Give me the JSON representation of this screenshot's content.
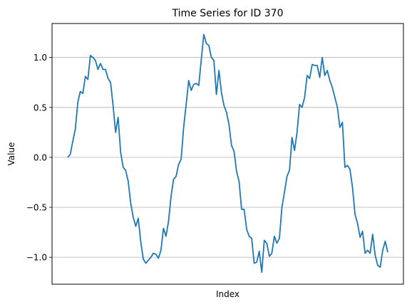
{
  "chart_data": {
    "type": "line",
    "title": "Time Series for ID 370",
    "xlabel": "Index",
    "ylabel": "Value",
    "ylim": [
      -1.27,
      1.34
    ],
    "yticks": [
      1.0,
      0.5,
      0.0,
      -0.5,
      -1.0
    ],
    "ytick_labels": [
      "1.0",
      "0.5",
      "0.0",
      "−0.5",
      "−1.0"
    ],
    "grid": "horizontal",
    "xticks_shown": false,
    "line_color": "#1f77b4",
    "series": [
      {
        "values": [
          0.0,
          0.03,
          0.16,
          0.28,
          0.55,
          0.66,
          0.64,
          0.81,
          0.78,
          1.02,
          1.0,
          0.97,
          0.88,
          0.94,
          0.88,
          0.88,
          0.79,
          0.75,
          0.52,
          0.25,
          0.4,
          0.05,
          -0.1,
          -0.13,
          -0.24,
          -0.46,
          -0.6,
          -0.69,
          -0.61,
          -0.85,
          -1.02,
          -1.06,
          -1.03,
          -1.0,
          -0.96,
          -0.97,
          -1.01,
          -0.93,
          -0.71,
          -0.79,
          -0.64,
          -0.39,
          -0.22,
          -0.19,
          -0.07,
          -0.02,
          0.3,
          0.53,
          0.77,
          0.67,
          0.73,
          0.74,
          0.72,
          0.98,
          1.23,
          1.14,
          1.12,
          1.0,
          0.97,
          0.63,
          0.87,
          0.65,
          0.52,
          0.45,
          0.33,
          0.12,
          0.06,
          -0.14,
          -0.24,
          -0.52,
          -0.52,
          -0.72,
          -0.79,
          -0.81,
          -1.06,
          -1.05,
          -0.94,
          -1.15,
          -0.83,
          -0.86,
          -0.99,
          -0.96,
          -0.79,
          -0.86,
          -0.81,
          -0.5,
          -0.35,
          -0.19,
          -0.13,
          0.2,
          0.07,
          0.25,
          0.53,
          0.5,
          0.6,
          0.82,
          0.79,
          0.93,
          0.92,
          0.92,
          0.8,
          1.0,
          0.82,
          0.87,
          0.77,
          0.7,
          0.6,
          0.5,
          0.3,
          0.35,
          -0.1,
          -0.08,
          -0.12,
          -0.3,
          -0.57,
          -0.66,
          -0.8,
          -0.74,
          -0.96,
          -0.93,
          -0.96,
          -0.77,
          -0.98,
          -1.08,
          -1.1,
          -0.93,
          -0.84,
          -0.95
        ]
      }
    ]
  }
}
